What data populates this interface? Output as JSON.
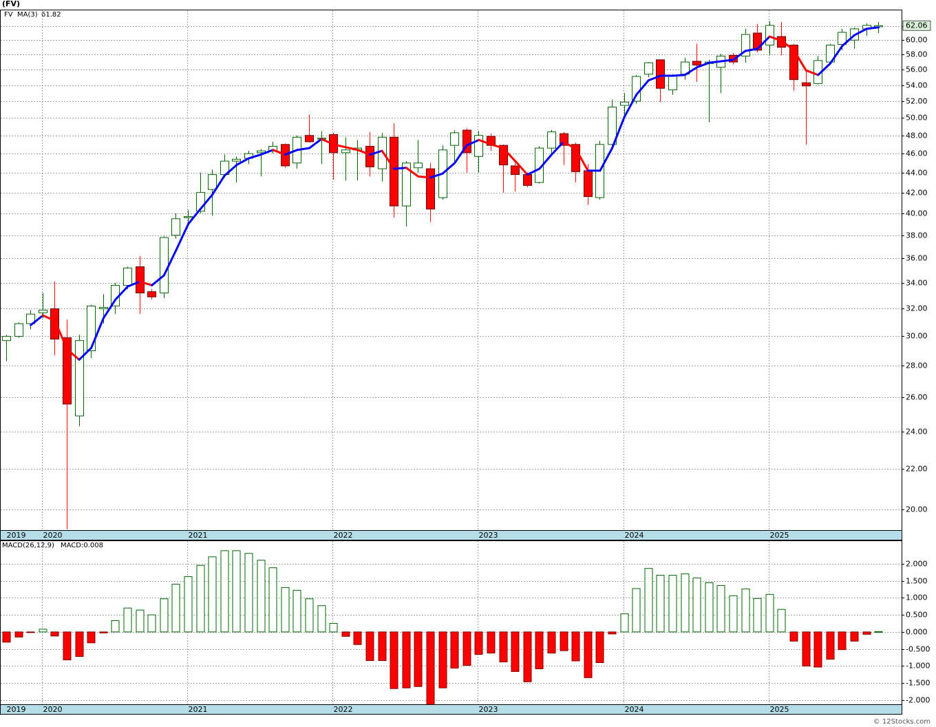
{
  "title": "(FV)",
  "footer": "© 12Stocks.com",
  "chart_data": [
    {
      "type": "candlestick",
      "log_scale": true,
      "grid": true,
      "categories": [
        "2019",
        null,
        null,
        "2020",
        null,
        null,
        null,
        null,
        null,
        null,
        null,
        null,
        null,
        null,
        null,
        "2021",
        null,
        null,
        null,
        null,
        null,
        null,
        null,
        null,
        null,
        null,
        null,
        "2022",
        null,
        null,
        null,
        null,
        null,
        null,
        null,
        null,
        null,
        null,
        null,
        "2023",
        null,
        null,
        null,
        null,
        null,
        null,
        null,
        null,
        null,
        null,
        null,
        "2024",
        null,
        null,
        null,
        null,
        null,
        null,
        null,
        null,
        null,
        null,
        null,
        "2025",
        null,
        null,
        null,
        null,
        null,
        null,
        null,
        null,
        null
      ],
      "ylim": [
        19.06,
        64.33
      ],
      "yticks": [
        {
          "value": 20,
          "label": "20.00"
        },
        {
          "value": 22,
          "label": "22.00"
        },
        {
          "value": 24,
          "label": "24.00"
        },
        {
          "value": 26,
          "label": "26.00"
        },
        {
          "value": 28,
          "label": "28.00"
        },
        {
          "value": 30,
          "label": "30.00"
        },
        {
          "value": 32,
          "label": "32.00"
        },
        {
          "value": 34,
          "label": "34.00"
        },
        {
          "value": 36,
          "label": "36.00"
        },
        {
          "value": 38,
          "label": "38.00"
        },
        {
          "value": 40,
          "label": "40.00"
        },
        {
          "value": 42,
          "label": "42.00"
        },
        {
          "value": 44,
          "label": "44.00"
        },
        {
          "value": 46,
          "label": "46.00"
        },
        {
          "value": 48,
          "label": "48.00"
        },
        {
          "value": 50,
          "label": "50.00"
        },
        {
          "value": 52,
          "label": "52.00"
        },
        {
          "value": 54,
          "label": "54.00"
        },
        {
          "value": 56,
          "label": "56.00"
        },
        {
          "value": 58,
          "label": "58.00"
        },
        {
          "value": 60,
          "label": "60.00"
        },
        {
          "value": 62,
          "label": "62.00"
        }
      ],
      "series": [
        {
          "name": "FV",
          "up_color": "#006400",
          "down_color": "#ff0000",
          "open": [
            29.7,
            30.0,
            30.9,
            31.7,
            32.0,
            29.9,
            24.9,
            29.0,
            32.0,
            32.2,
            33.8,
            35.3,
            33.3,
            33.2,
            38.0,
            39.6,
            40.2,
            42.3,
            43.8,
            45.2,
            45.5,
            46.1,
            46.3,
            47.0,
            45.0,
            48.0,
            47.6,
            48.1,
            46.1,
            46.4,
            46.8,
            44.4,
            47.8,
            40.7,
            44.5,
            44.4,
            41.5,
            46.9,
            48.6,
            45.7,
            47.9,
            46.9,
            44.7,
            43.8,
            43.0,
            46.6,
            48.2,
            47.0,
            44.2,
            41.5,
            47.0,
            51.5,
            52.0,
            55.4,
            57.3,
            53.4,
            55.4,
            57.1,
            56.8,
            56.3,
            57.9,
            57.8,
            61.0,
            59.3,
            60.5,
            59.3,
            54.3,
            54.2,
            57.0,
            59.4,
            60.0,
            61.6,
            61.9
          ],
          "high": [
            30.1,
            31.0,
            31.9,
            33.2,
            34.1,
            31.2,
            30.1,
            32.3,
            33.1,
            34.0,
            35.3,
            36.2,
            33.5,
            37.9,
            40.0,
            40.3,
            44.0,
            44.3,
            45.9,
            45.7,
            46.3,
            46.5,
            47.3,
            47.1,
            48.0,
            50.4,
            48.5,
            48.3,
            47.8,
            47.5,
            48.4,
            48.3,
            49.4,
            45.2,
            47.5,
            45.0,
            46.9,
            48.6,
            48.8,
            48.5,
            48.2,
            47.0,
            45.0,
            44.0,
            46.8,
            48.6,
            48.4,
            47.2,
            44.9,
            47.4,
            52.2,
            53.0,
            55.3,
            57.0,
            57.3,
            55.4,
            57.6,
            59.5,
            57.3,
            58.1,
            58.2,
            61.6,
            62.3,
            62.7,
            62.6,
            59.5,
            56.0,
            57.8,
            59.5,
            61.6,
            61.8,
            62.4,
            62.6
          ],
          "low": [
            28.3,
            29.9,
            30.5,
            31.3,
            28.7,
            19.1,
            24.3,
            28.5,
            30.9,
            31.6,
            33.5,
            31.6,
            32.7,
            32.8,
            37.7,
            38.9,
            40.0,
            39.8,
            43.5,
            43.0,
            44.9,
            43.6,
            46.0,
            44.5,
            44.4,
            47.2,
            44.9,
            43.3,
            43.2,
            43.2,
            43.6,
            43.1,
            39.6,
            38.8,
            44.0,
            39.2,
            41.3,
            45.1,
            44.0,
            44.0,
            46.3,
            42.0,
            42.1,
            42.5,
            42.9,
            45.8,
            44.8,
            43.0,
            40.8,
            41.3,
            46.7,
            50.2,
            51.7,
            55.0,
            51.9,
            52.8,
            54.7,
            54.4,
            49.5,
            53.0,
            56.7,
            56.9,
            58.3,
            57.9,
            57.9,
            53.3,
            47.0,
            54.1,
            56.8,
            58.6,
            58.8,
            60.6,
            61.0
          ],
          "close": [
            30.0,
            30.9,
            31.6,
            31.9,
            29.8,
            25.6,
            29.7,
            32.2,
            32.1,
            33.8,
            35.2,
            33.2,
            32.9,
            37.8,
            39.5,
            39.7,
            42.0,
            43.8,
            45.2,
            45.4,
            46.0,
            46.3,
            46.8,
            44.7,
            47.8,
            47.3,
            47.7,
            46.1,
            46.4,
            46.6,
            44.6,
            47.8,
            40.7,
            45.0,
            45.0,
            40.4,
            46.4,
            48.3,
            46.1,
            48.0,
            46.9,
            44.8,
            43.8,
            42.7,
            46.6,
            48.4,
            46.9,
            44.1,
            41.6,
            47.0,
            51.3,
            51.9,
            55.1,
            56.9,
            53.6,
            55.2,
            57.0,
            56.6,
            57.0,
            57.8,
            57.0,
            60.8,
            58.6,
            62.1,
            59.0,
            54.7,
            53.9,
            57.2,
            59.3,
            61.1,
            61.6,
            62.1,
            62.06
          ]
        },
        {
          "name": "MA(3)",
          "color": "#0000ff",
          "up_color": "#0000ff",
          "down_color": "#ff0000",
          "values": [
            null,
            null,
            30.8,
            31.5,
            31.1,
            29.1,
            28.4,
            29.2,
            31.3,
            32.7,
            33.7,
            34.1,
            33.8,
            34.6,
            36.7,
            39.0,
            40.4,
            41.8,
            43.7,
            44.8,
            45.5,
            45.9,
            46.4,
            45.9,
            46.4,
            46.6,
            47.6,
            47.0,
            46.7,
            46.4,
            45.9,
            46.3,
            44.4,
            44.5,
            43.6,
            43.5,
            43.9,
            45.0,
            46.9,
            47.5,
            47.0,
            46.6,
            45.2,
            43.8,
            44.4,
            45.9,
            47.3,
            46.5,
            44.2,
            44.2,
            46.6,
            50.1,
            52.8,
            54.6,
            55.2,
            55.2,
            55.3,
            56.3,
            56.9,
            57.1,
            57.3,
            58.5,
            58.8,
            60.5,
            59.9,
            58.6,
            55.9,
            55.3,
            56.8,
            59.2,
            60.7,
            61.6,
            61.82
          ]
        }
      ]
    },
    {
      "type": "bar",
      "title": "MACD(26,12,9)",
      "legend_text": "MACD:0.008",
      "grid": true,
      "categories": [
        "2019",
        null,
        null,
        "2020",
        null,
        null,
        null,
        null,
        null,
        null,
        null,
        null,
        null,
        null,
        null,
        "2021",
        null,
        null,
        null,
        null,
        null,
        null,
        null,
        null,
        null,
        null,
        null,
        "2022",
        null,
        null,
        null,
        null,
        null,
        null,
        null,
        null,
        null,
        null,
        null,
        "2023",
        null,
        null,
        null,
        null,
        null,
        null,
        null,
        null,
        null,
        null,
        null,
        "2024",
        null,
        null,
        null,
        null,
        null,
        null,
        null,
        null,
        null,
        null,
        null,
        "2025",
        null,
        null,
        null,
        null,
        null,
        null,
        null,
        null,
        null
      ],
      "ylim": [
        -2.12,
        2.66
      ],
      "yticks": [
        {
          "value": 2,
          "label": "2.000"
        },
        {
          "value": 1.5,
          "label": "1.500"
        },
        {
          "value": 1,
          "label": "1.000"
        },
        {
          "value": 0.5,
          "label": "0.500"
        },
        {
          "value": 0,
          "label": "0.000"
        },
        {
          "value": -0.5,
          "label": "-0.500"
        },
        {
          "value": -1,
          "label": "-1.000"
        },
        {
          "value": -1.5,
          "label": "-1.500"
        },
        {
          "value": -2,
          "label": "-2.000"
        }
      ],
      "series": [
        {
          "name": "MACD",
          "up_color": "#006400",
          "down_color": "#ff0000",
          "values": [
            -0.3,
            -0.15,
            -0.02,
            0.08,
            -0.12,
            -0.82,
            -0.72,
            -0.32,
            -0.03,
            0.33,
            0.7,
            0.64,
            0.5,
            0.97,
            1.4,
            1.62,
            1.95,
            2.2,
            2.38,
            2.38,
            2.3,
            2.1,
            1.88,
            1.3,
            1.22,
            0.97,
            0.77,
            0.25,
            -0.13,
            -0.37,
            -0.84,
            -0.84,
            -1.66,
            -1.64,
            -1.6,
            -2.12,
            -1.64,
            -1.06,
            -0.98,
            -0.66,
            -0.62,
            -0.88,
            -1.16,
            -1.46,
            -1.08,
            -0.62,
            -0.55,
            -0.85,
            -1.34,
            -0.9,
            -0.06,
            0.53,
            1.27,
            1.86,
            1.66,
            1.66,
            1.7,
            1.58,
            1.44,
            1.36,
            1.06,
            1.26,
            0.98,
            1.1,
            0.66,
            -0.27,
            -1.0,
            -1.03,
            -0.8,
            -0.52,
            -0.27,
            -0.07,
            0.008
          ]
        }
      ]
    }
  ]
}
